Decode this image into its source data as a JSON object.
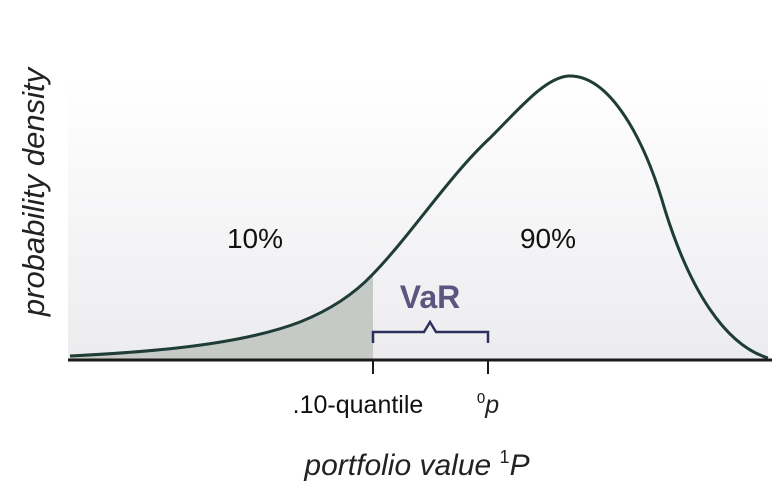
{
  "diagram": {
    "ylabel": "probability density",
    "xlabel_main": "portfolio value ",
    "xlabel_super": "1",
    "xlabel_var": "P",
    "left_area_label": "10%",
    "right_area_label": "90%",
    "var_label": "VaR",
    "quantile_label": ".10-quantile",
    "p0_super": "0",
    "p0_var": "p",
    "colors": {
      "curve": "#1f3d36",
      "tail_fill": "#c5cac7",
      "background_band": "#f3f3f5",
      "var_bracket": "#2e2f5e",
      "var_text": "#5a567f",
      "axis": "#1a1a1a"
    }
  }
}
